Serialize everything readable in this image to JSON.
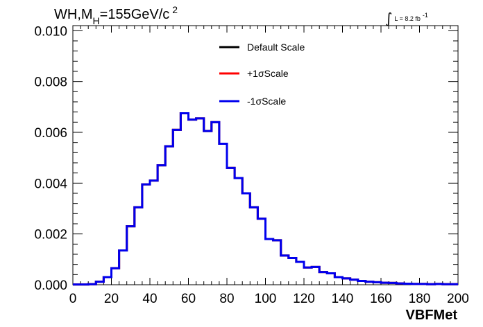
{
  "chart_data": {
    "type": "line",
    "style": "histogram-step",
    "title": {
      "prefix": "WH,M",
      "subscript": "H",
      "value": "=155GeV/c",
      "superscript": "2"
    },
    "luminosity": {
      "symbol": "∫",
      "text": "L = 8.2 fb",
      "superscript": "-1"
    },
    "xlabel": "VBFMet",
    "ylabel": "",
    "xlim": [
      0,
      200
    ],
    "ylim": [
      0,
      0.0102
    ],
    "x_ticks": [
      "0",
      "20",
      "40",
      "60",
      "80",
      "100",
      "120",
      "140",
      "160",
      "180",
      "200"
    ],
    "y_ticks": [
      "0.000",
      "0.002",
      "0.004",
      "0.006",
      "0.008",
      "0.010"
    ],
    "bin_width": 4,
    "bin_edges_start": 0,
    "series": [
      {
        "name": "Default Scale",
        "color": "#000000",
        "values": [
          1e-05,
          1e-05,
          2e-05,
          0.00012,
          0.0003,
          0.00065,
          0.00135,
          0.0023,
          0.00305,
          0.00395,
          0.0041,
          0.0047,
          0.00545,
          0.0061,
          0.00675,
          0.0065,
          0.00655,
          0.00605,
          0.0064,
          0.00555,
          0.0046,
          0.0042,
          0.0036,
          0.00305,
          0.0026,
          0.0018,
          0.00175,
          0.00115,
          0.00105,
          0.0009,
          0.00068,
          0.0007,
          0.0005,
          0.00045,
          0.0003,
          0.00025,
          0.0002,
          0.00015,
          0.00012,
          0.0001,
          8e-05,
          7e-05,
          5e-05,
          4e-05,
          3e-05,
          3e-05,
          2e-05,
          3e-05,
          2e-05,
          2e-05
        ]
      },
      {
        "name": "+1σScale",
        "color": "#ff0000",
        "values": [
          1e-05,
          1e-05,
          2e-05,
          0.00012,
          0.0003,
          0.00065,
          0.00135,
          0.0023,
          0.00305,
          0.00395,
          0.0041,
          0.0047,
          0.00545,
          0.0061,
          0.00675,
          0.0065,
          0.00655,
          0.00605,
          0.0064,
          0.00555,
          0.0046,
          0.0042,
          0.0036,
          0.00305,
          0.0026,
          0.0018,
          0.00175,
          0.00115,
          0.00105,
          0.0009,
          0.00068,
          0.0007,
          0.0005,
          0.00045,
          0.0003,
          0.00025,
          0.0002,
          0.00015,
          0.00012,
          0.0001,
          8e-05,
          7e-05,
          5e-05,
          4e-05,
          3e-05,
          3e-05,
          2e-05,
          3e-05,
          2e-05,
          2e-05
        ]
      },
      {
        "name": "-1σScale",
        "color": "#0000ee",
        "values": [
          1e-05,
          1e-05,
          2e-05,
          0.00012,
          0.0003,
          0.00065,
          0.00135,
          0.0023,
          0.00305,
          0.00395,
          0.0041,
          0.0047,
          0.00545,
          0.0061,
          0.00675,
          0.0065,
          0.00655,
          0.00605,
          0.0064,
          0.00555,
          0.0046,
          0.0042,
          0.0036,
          0.00305,
          0.0026,
          0.0018,
          0.00175,
          0.00115,
          0.00105,
          0.0009,
          0.00068,
          0.0007,
          0.0005,
          0.00045,
          0.0003,
          0.00025,
          0.0002,
          0.00015,
          0.00012,
          0.0001,
          8e-05,
          7e-05,
          5e-05,
          4e-05,
          3e-05,
          3e-05,
          2e-05,
          3e-05,
          2e-05,
          2e-05
        ]
      }
    ],
    "legend_position": "top-center",
    "grid": false
  }
}
